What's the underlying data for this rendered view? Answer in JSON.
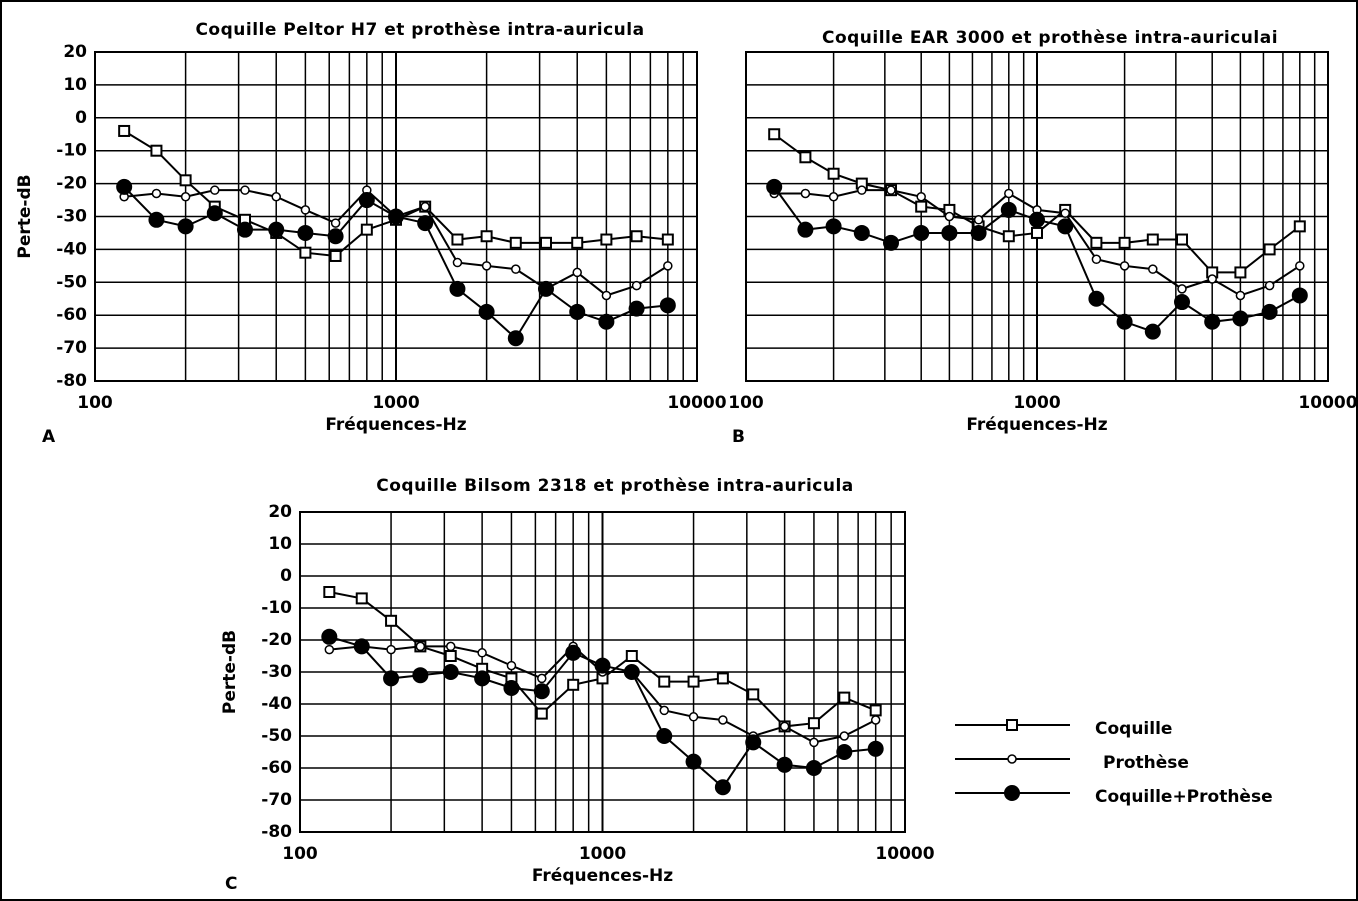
{
  "chart_data": [
    {
      "type": "line",
      "label": "A",
      "title": "Coquille Peltor H7 et prothèse intra-auricula",
      "xlabel": "Fréquences-Hz",
      "ylabel": "Perte-dB",
      "xscale": "log",
      "grid": true,
      "x": [
        125,
        160,
        200,
        250,
        315,
        400,
        500,
        630,
        800,
        1000,
        1250,
        1600,
        2000,
        2500,
        3150,
        4000,
        5000,
        6300,
        8000
      ],
      "xlim": [
        100,
        10000
      ],
      "xticks": [
        100,
        1000,
        10000
      ],
      "ylim": [
        -80,
        20
      ],
      "yticks": [
        -80,
        -70,
        -60,
        -50,
        -40,
        -30,
        -20,
        -10,
        0,
        10,
        20
      ],
      "series": [
        {
          "marker": "square",
          "color": "#000",
          "values": [
            -4,
            -10,
            -19,
            -27,
            -31,
            -35,
            -41,
            -42,
            -34,
            -31,
            -27,
            -37,
            -36,
            -38,
            -38,
            -38,
            -37,
            -36,
            -37
          ]
        },
        {
          "marker": "circle",
          "color": "#000",
          "values": [
            -24,
            -23,
            -24,
            -22,
            -22,
            -24,
            -28,
            -32,
            -22,
            -30,
            -27,
            -44,
            -45,
            -46,
            -52,
            -47,
            -54,
            -51,
            -45
          ]
        },
        {
          "marker": "filled",
          "color": "#000",
          "values": [
            -21,
            -31,
            -33,
            -29,
            -34,
            -34,
            -35,
            -36,
            -25,
            -30,
            -32,
            -52,
            -59,
            -67,
            -52,
            -59,
            -62,
            -58,
            -57
          ]
        }
      ]
    },
    {
      "type": "line",
      "label": "B",
      "title": "Coquille EAR 3000 et prothèse intra-auriculai",
      "xlabel": "Fréquences-Hz",
      "xscale": "log",
      "grid": true,
      "x": [
        125,
        160,
        200,
        250,
        315,
        400,
        500,
        630,
        800,
        1000,
        1250,
        1600,
        2000,
        2500,
        3150,
        4000,
        5000,
        6300,
        8000
      ],
      "xlim": [
        100,
        10000
      ],
      "xticks": [
        100,
        1000,
        10000
      ],
      "ylim": [
        -80,
        20
      ],
      "series": [
        {
          "marker": "square",
          "color": "#000",
          "values": [
            -5,
            -12,
            -17,
            -20,
            -22,
            -27,
            -28,
            -33,
            -36,
            -35,
            -28,
            -38,
            -38,
            -37,
            -37,
            -47,
            -47,
            -40,
            -33
          ]
        },
        {
          "marker": "circle",
          "color": "#000",
          "values": [
            -23,
            -23,
            -24,
            -22,
            -22,
            -24,
            -30,
            -31,
            -23,
            -28,
            -29,
            -43,
            -45,
            -46,
            -52,
            -49,
            -54,
            -51,
            -45
          ]
        },
        {
          "marker": "filled",
          "color": "#000",
          "values": [
            -21,
            -34,
            -33,
            -35,
            -38,
            -35,
            -35,
            -35,
            -28,
            -31,
            -33,
            -55,
            -62,
            -65,
            -56,
            -62,
            -61,
            -59,
            -54
          ]
        }
      ]
    },
    {
      "type": "line",
      "label": "C",
      "title": "Coquille Bilsom 2318 et prothèse intra-auricula",
      "xlabel": "Fréquences-Hz",
      "ylabel": "Perte-dB",
      "xscale": "log",
      "grid": true,
      "x": [
        125,
        160,
        200,
        250,
        315,
        400,
        500,
        630,
        800,
        1000,
        1250,
        1600,
        2000,
        2500,
        3150,
        4000,
        5000,
        6300,
        8000
      ],
      "xlim": [
        100,
        10000
      ],
      "xticks": [
        100,
        1000,
        10000
      ],
      "ylim": [
        -80,
        20
      ],
      "yticks": [
        -80,
        -70,
        -60,
        -50,
        -40,
        -30,
        -20,
        -10,
        0,
        10,
        20
      ],
      "series": [
        {
          "name": "Coquille",
          "marker": "square",
          "color": "#000",
          "values": [
            -5,
            -7,
            -14,
            -22,
            -25,
            -29,
            -32,
            -43,
            -34,
            -32,
            -25,
            -33,
            -33,
            -32,
            -37,
            -47,
            -46,
            -38,
            -42
          ]
        },
        {
          "name": "Prothèse",
          "marker": "circle",
          "color": "#000",
          "values": [
            -23,
            -22,
            -23,
            -22,
            -22,
            -24,
            -28,
            -32,
            -22,
            -30,
            -30,
            -42,
            -44,
            -45,
            -50,
            -47,
            -52,
            -50,
            -45
          ]
        },
        {
          "name": "Coquille+Prothèse",
          "marker": "filled",
          "color": "#000",
          "values": [
            -19,
            -22,
            -32,
            -31,
            -30,
            -32,
            -35,
            -36,
            -24,
            -28,
            -30,
            -50,
            -58,
            -66,
            -52,
            -59,
            -60,
            -55,
            -54
          ]
        }
      ]
    }
  ]
}
